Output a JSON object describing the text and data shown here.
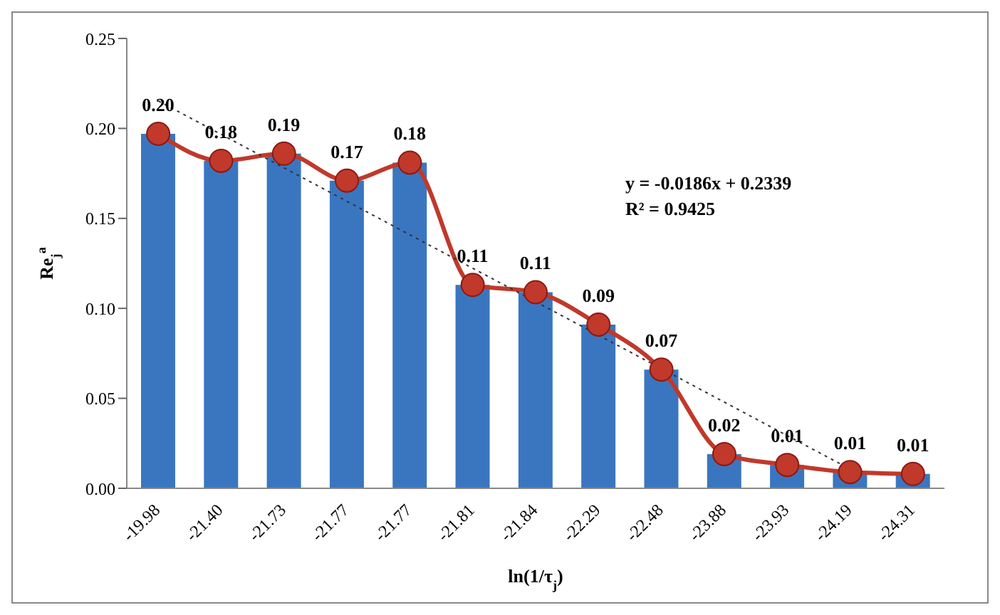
{
  "chart_data": {
    "type": "bar",
    "ylabel": "Re$_{j}$$^{a}$",
    "xlabel": "ln(1/τ$_{j}$)",
    "categories": [
      "-19.98",
      "-21.40",
      "-21.73",
      "-21.77",
      "-21.77",
      "-21.81",
      "-21.84",
      "-22.29",
      "-22.48",
      "-23.88",
      "-23.93",
      "-24.19",
      "-24.31"
    ],
    "series": [
      {
        "color": "#3a76c0",
        "values": [
          0.197,
          0.182,
          0.186,
          0.171,
          0.181,
          0.113,
          0.109,
          0.091,
          0.066,
          0.019,
          0.013,
          0.009,
          0.008
        ],
        "value_labels": [
          "0.20",
          "0.18",
          "0.19",
          "0.17",
          "0.18",
          "0.11",
          "0.11",
          "0.09",
          "0.07",
          "0.02",
          "0.01",
          "0.01",
          "0.01"
        ]
      },
      {
        "type": "line",
        "color": "#c0392b",
        "marker": "circle",
        "line_style": "solid",
        "values": [
          0.197,
          0.182,
          0.186,
          0.171,
          0.181,
          0.113,
          0.109,
          0.091,
          0.066,
          0.019,
          0.013,
          0.009,
          0.008
        ]
      },
      {
        "type": "line",
        "color": "#333333",
        "marker": "none",
        "line_style": "dotted",
        "values": [
          0.2153,
          0.1967,
          0.1781,
          0.1595,
          0.1409,
          0.1223,
          0.1037,
          0.0851,
          0.0665,
          0.0479,
          0.0293,
          0.0107,
          null
        ]
      }
    ],
    "ylim": [
      0,
      0.25
    ],
    "yticks": [
      {
        "value": 0,
        "label": "0.00"
      },
      {
        "value": 0.05,
        "label": "0.05"
      },
      {
        "value": 0.1,
        "label": "0.10"
      },
      {
        "value": 0.15,
        "label": "0.15"
      },
      {
        "value": 0.2,
        "label": "0.20"
      },
      {
        "value": 0.25,
        "label": "0.25"
      }
    ],
    "grid": false,
    "legend": false,
    "annotations": [
      "y = -0.0186x + 0.2339",
      "R² = 0.9425"
    ]
  }
}
